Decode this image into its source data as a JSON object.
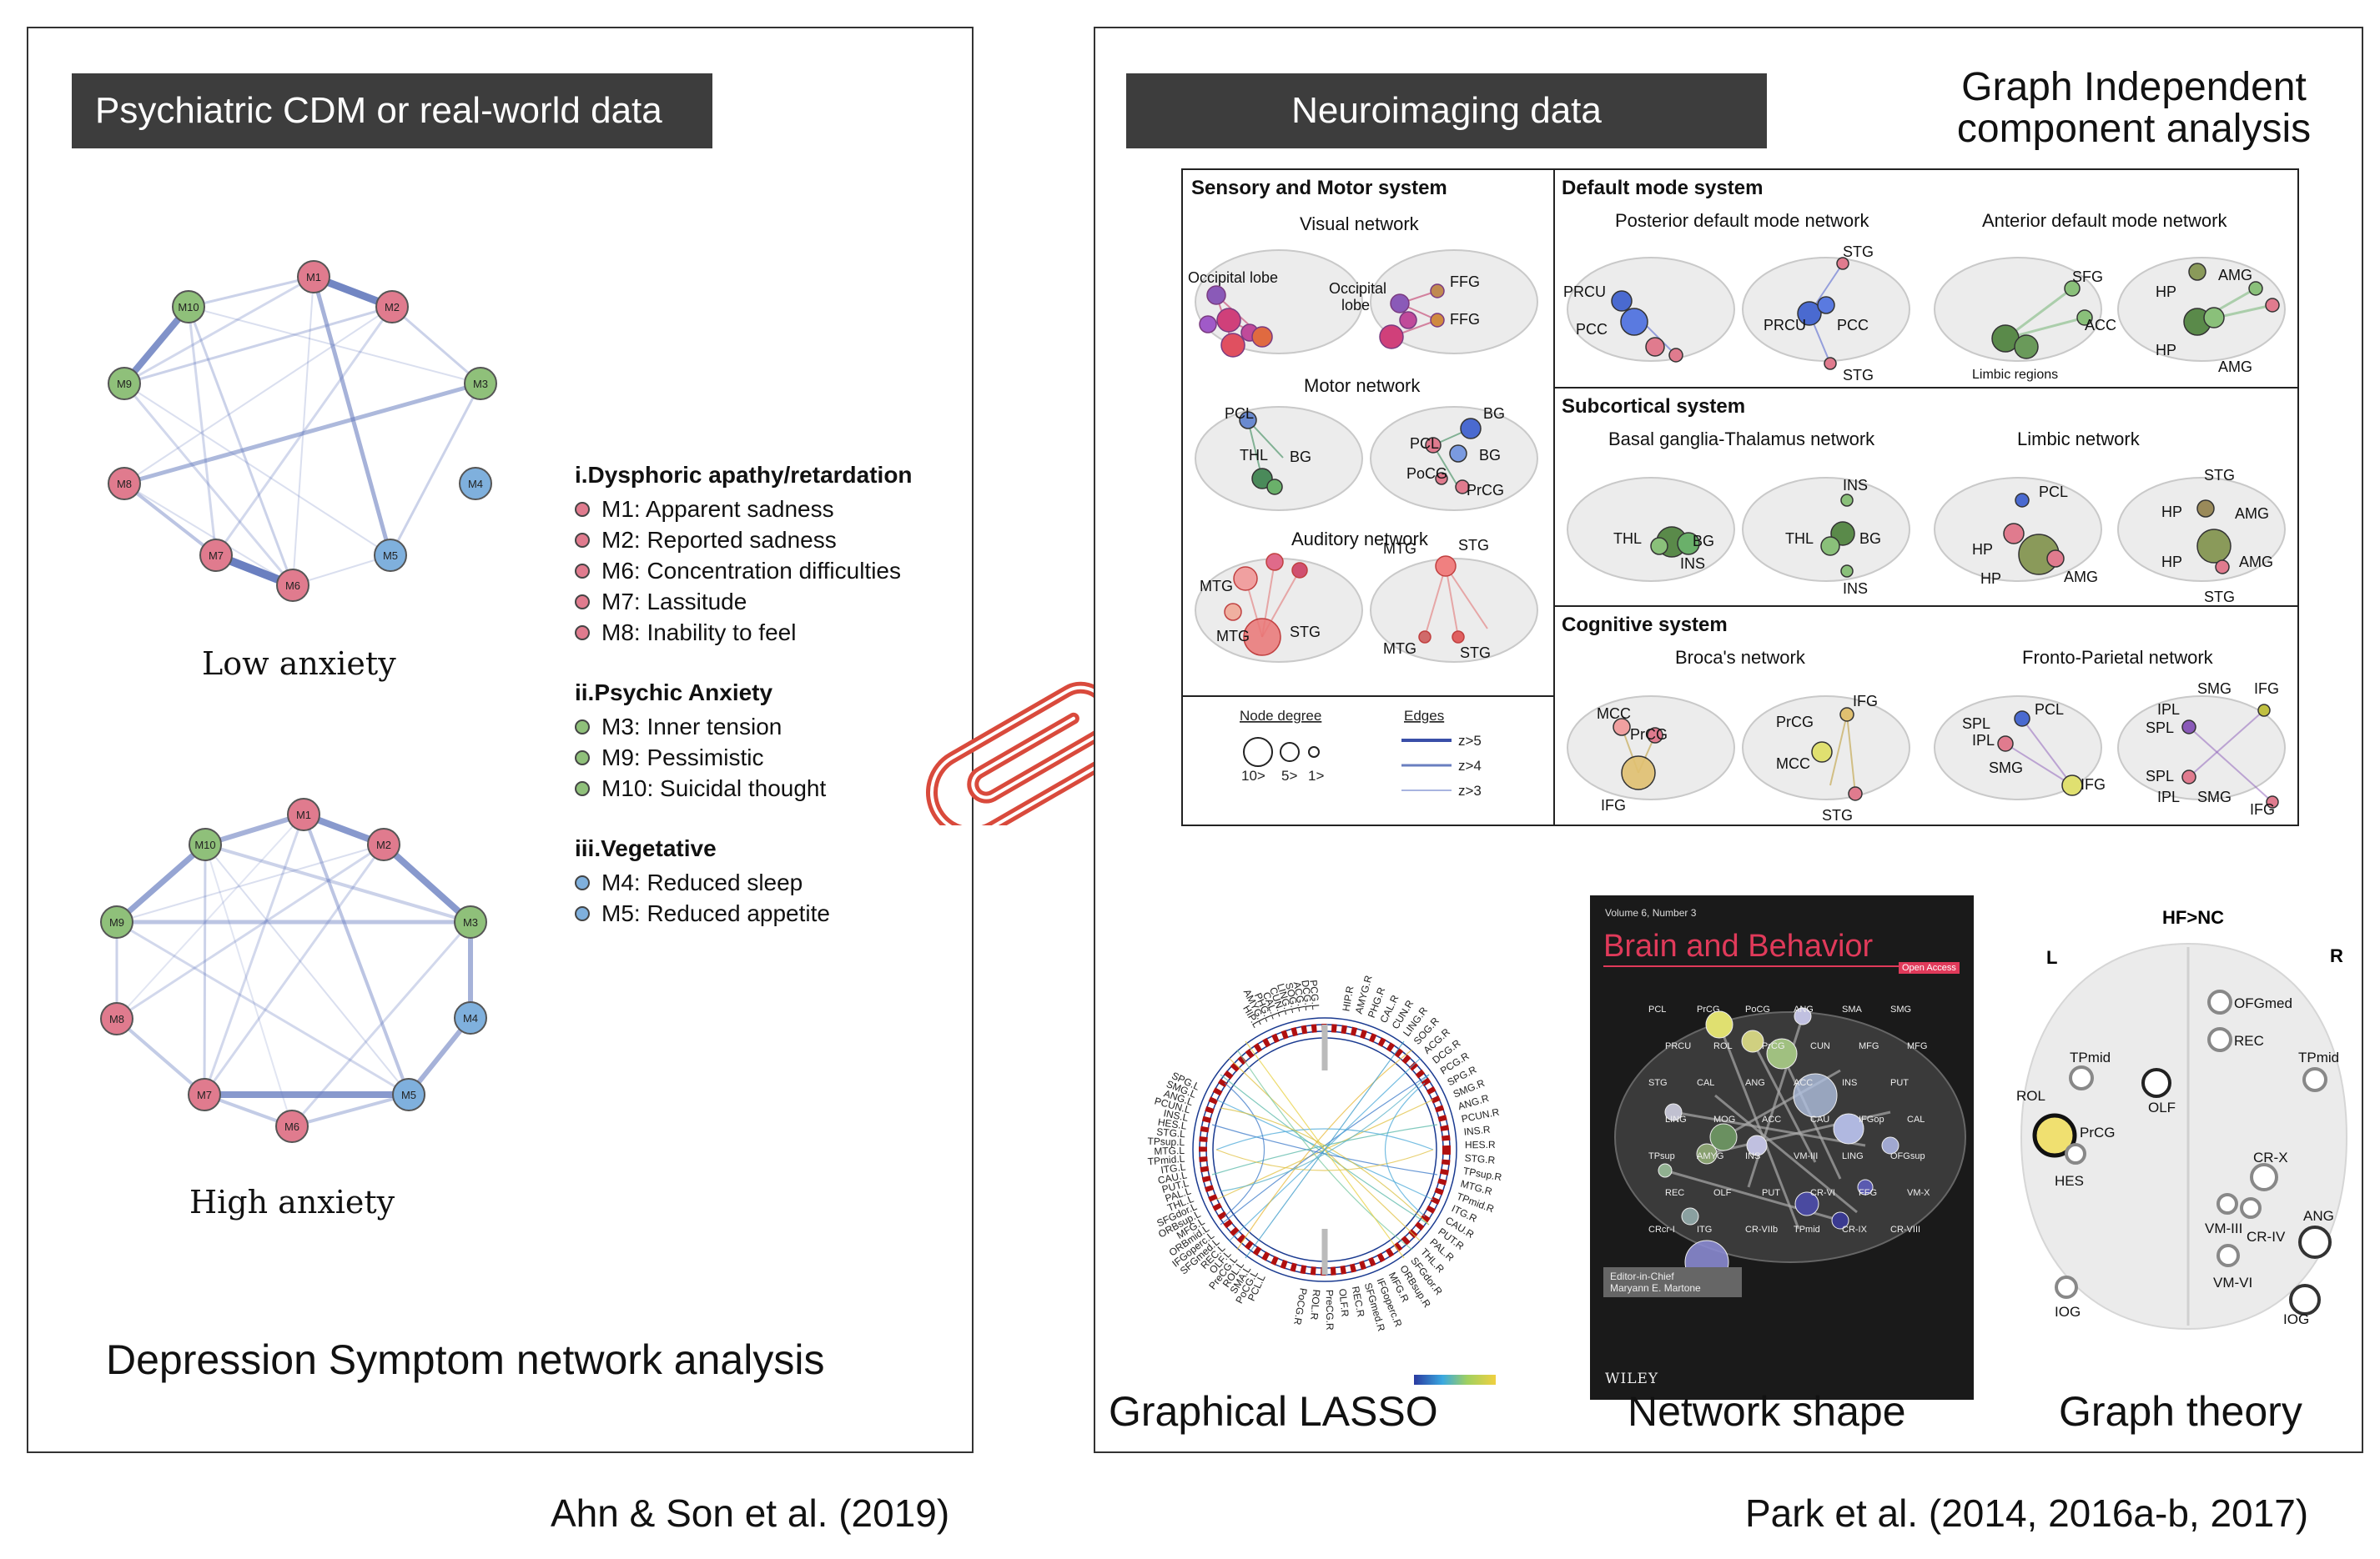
{
  "left_panel": {
    "banner": "Psychiatric CDM or real-world data",
    "low_label": "Low anxiety",
    "high_label": "High anxiety",
    "caption": "Depression Symptom network analysis",
    "nodes": {
      "M1": "M1",
      "M2": "M2",
      "M3": "M3",
      "M4": "M4",
      "M5": "M5",
      "M6": "M6",
      "M7": "M7",
      "M8": "M8",
      "M9": "M9",
      "M10": "M10"
    },
    "legend": [
      {
        "heading": "i.Dysphoric apathy/retardation",
        "items": [
          "M1: Apparent sadness",
          "M2: Reported sadness",
          "M6: Concentration difficulties",
          "M7: Lassitude",
          "M8: Inability to feel"
        ]
      },
      {
        "heading": "ii.Psychic Anxiety",
        "items": [
          "M3: Inner tension",
          "M9: Pessimistic",
          "M10: Suicidal thought"
        ]
      },
      {
        "heading": "iii.Vegetative",
        "items": [
          "M4: Reduced sleep",
          "M5: Reduced appetite"
        ]
      }
    ],
    "citation": "Ahn & Son et al. (2019)"
  },
  "right_panel": {
    "banner": "Neuroimaging data",
    "title_line1": "Graph Independent",
    "title_line2": "component analysis",
    "sensory": {
      "title": "Sensory and Motor system",
      "visual": "Visual network",
      "occipital": "Occipital lobe",
      "occipital2a": "Occipital",
      "occipital2b": "lobe",
      "ffg": "FFG",
      "motor": "Motor network",
      "pcl": "PCL",
      "thl": "THL",
      "bg": "BG",
      "poCG": "PoCG",
      "prCG": "PrCG",
      "auditory": "Auditory network",
      "mtg": "MTG",
      "stg": "STG"
    },
    "default": {
      "title": "Default mode system",
      "posterior": "Posterior default mode network",
      "anterior": "Anterior default mode network",
      "prcu": "PRCU",
      "pcc": "PCC",
      "stg": "STG",
      "sfg": "SFG",
      "acc": "ACC",
      "amg": "AMG",
      "hp": "HP",
      "limbic_regions": "Limbic regions"
    },
    "subcortical": {
      "title": "Subcortical system",
      "bgt": "Basal ganglia-Thalamus network",
      "limbic": "Limbic network",
      "thl": "THL",
      "bg": "BG",
      "ins": "INS",
      "pcl": "PCL",
      "hp": "HP",
      "amg": "AMG",
      "stg": "STG"
    },
    "cognitive": {
      "title": "Cognitive system",
      "broca": "Broca's network",
      "fp": "Fronto-Parietal network",
      "mcc": "MCC",
      "prcg": "PrCG",
      "ifg": "IFG",
      "stg": "STG",
      "spl": "SPL",
      "pcl": "PCL",
      "ipl": "IPL",
      "smg": "SMG"
    },
    "key": {
      "node_degree": "Node degree",
      "edges": "Edges",
      "deg10": "10>",
      "deg5": "5>",
      "deg1": "1>",
      "z5": "z>5",
      "z4": "z>4",
      "z3": "z>3"
    },
    "journal": {
      "volume": "Volume 6, Number 3",
      "title": "Brain and Behavior",
      "open_access": "Open Access",
      "editor1": "Editor-in-Chief",
      "editor2": "Maryann E. Martone",
      "publisher": "WILEY",
      "labels": [
        "PCL",
        "PrCG",
        "PoCG",
        "ANG",
        "SMA",
        "SMG",
        "PRCU",
        "ROL",
        "PrCG",
        "CUN",
        "MFG",
        "MFG",
        "STG",
        "CAL",
        "ANG",
        "ACC",
        "INS",
        "PUT",
        "LING",
        "MOG",
        "ACC",
        "CAU",
        "IFGop",
        "CAL",
        "TPsup",
        "AMYG",
        "INS",
        "VM-III",
        "LING",
        "OFGsup",
        "REC",
        "OLF",
        "PUT",
        "CR-VI",
        "FFG",
        "VM-X",
        "CRcr-I",
        "ITG",
        "CR-VIIb",
        "TPmid",
        "CR-IX",
        "CR-VIII"
      ]
    },
    "graph_theory": {
      "title": "HF>NC",
      "left": "L",
      "right": "R",
      "labels": [
        "OFGmed",
        "REC",
        "TPmid",
        "TPmid",
        "ROL",
        "OLF",
        "PrCG",
        "HES",
        "CR-X",
        "ANG",
        "VM-III",
        "CR-IV",
        "VM-VI",
        "IOG",
        "IOG"
      ]
    },
    "lasso_labels_left": [
      "SPG.L",
      "SMG.L",
      "ANG.L",
      "PCUN.L",
      "INS.L",
      "HES.L",
      "STG.L",
      "TPsup.L",
      "MTG.L",
      "TPmid.L",
      "ITG.L",
      "CAU.L",
      "PUT.L",
      "PAL.L",
      "THL.L",
      "SFGdor.L",
      "ORBsup.L",
      "MFG.L",
      "ORBmid.L",
      "IFGoperc.L",
      "SFGmed.L",
      "REC.L",
      "OLF.L",
      "PreCG.L",
      "ROL.L",
      "SMA.L",
      "PoCG.L",
      "PCL.L"
    ],
    "lasso_labels_right": [
      "HIP.R",
      "AMYG.R",
      "PHG.R",
      "CAL.R",
      "CUN.R",
      "LING.R",
      "SOG.R",
      "ACG.R",
      "DCG.R",
      "PCG.R",
      "SPG.R",
      "SMG.R",
      "ANG.R",
      "PCUN.R",
      "INS.R",
      "HES.R",
      "STG.R",
      "TPsup.R",
      "MTG.R",
      "TPmid.R",
      "ITG.R",
      "CAU.R",
      "PUT.R",
      "PAL.R",
      "THL.R",
      "SFGdor.R",
      "ORBsup.R",
      "MFG.R",
      "IFGoperc.R",
      "SFGmed.R",
      "REC.R",
      "OLF.R",
      "PreCG.R",
      "ROL.R",
      "PoCG.R"
    ],
    "lasso_labels_top": [
      "HIP.L",
      "AMYG.L",
      "PHG.L",
      "CAL.L",
      "CUN.L",
      "LING.L",
      "SOG.L",
      "ACG.L",
      "DCG.L",
      "PCG.L"
    ],
    "captions": {
      "lasso": "Graphical LASSO",
      "shape": "Network shape",
      "theory": "Graph theory"
    },
    "citation": "Park et al. (2014, 2016a-b, 2017)"
  },
  "colors": {
    "dysphoric": "#e07b8e",
    "anxiety": "#8fc07a",
    "vegetative": "#7fb0dd",
    "edge": "#6a7fc0",
    "banner": "#3d3d3d",
    "clip": "#d94a3c"
  }
}
